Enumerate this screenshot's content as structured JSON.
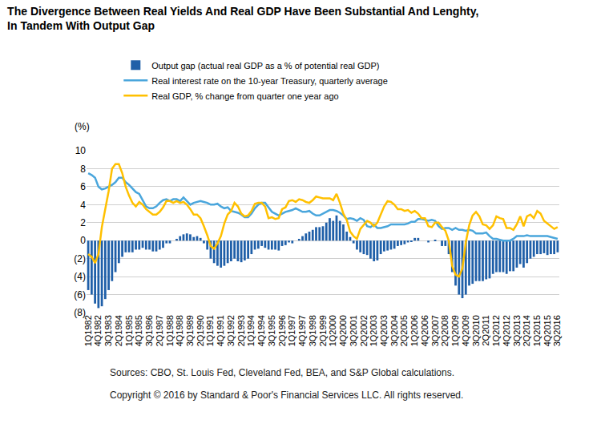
{
  "chart_data": {
    "type": "bar",
    "title": "The Divergence Between Real Yields And Real GDP Have Been Substantial And Lenghty,\nIn Tandem With Output Gap",
    "ylabel": "(%)",
    "annotations": [
      "Sources: CBO, St. Louis Fed, Cleveland Fed, BEA, and S&P Global calculations.",
      "Copyright © 2016 by Standard & Poor's Financial Services LLC. All rights reserved."
    ],
    "categories": [
      "1Q1982",
      null,
      null,
      "4Q1982",
      null,
      null,
      "3Q1983",
      null,
      null,
      "2Q1984",
      null,
      null,
      "1Q1985",
      null,
      null,
      "4Q1985",
      null,
      null,
      "3Q1986",
      null,
      null,
      "2Q1987",
      null,
      null,
      "1Q1988",
      null,
      null,
      "4Q1988",
      null,
      null,
      "3Q1989",
      null,
      null,
      "2Q1990",
      null,
      null,
      "1Q1991",
      null,
      null,
      "4Q1991",
      null,
      null,
      "3Q1992",
      null,
      null,
      "2Q1993",
      null,
      null,
      "1Q1994",
      null,
      null,
      "4Q1994",
      null,
      null,
      "3Q1995",
      null,
      null,
      "2Q1996",
      null,
      null,
      "1Q1997",
      null,
      null,
      "4Q1997",
      null,
      null,
      "3Q1998",
      null,
      null,
      "2Q1999",
      null,
      null,
      "1Q2000",
      null,
      null,
      "4Q2000",
      null,
      null,
      "3Q2001",
      null,
      null,
      "2Q2002",
      null,
      null,
      "1Q2003",
      null,
      null,
      "4Q2003",
      null,
      null,
      "3Q2004",
      null,
      null,
      "2Q2005",
      null,
      null,
      "1Q2006",
      null,
      null,
      "4Q2006",
      null,
      null,
      "3Q2007",
      null,
      null,
      "2Q2008",
      null,
      null,
      "1Q2009",
      null,
      null,
      "4Q2009",
      null,
      null,
      "3Q2010",
      null,
      null,
      "2Q2011",
      null,
      null,
      "1Q2012",
      null,
      null,
      "4Q2012",
      null,
      null,
      "3Q2013",
      null,
      null,
      "2Q2014",
      null,
      null,
      "1Q2015",
      null,
      null,
      "4Q2015",
      null,
      null,
      "3Q2016"
    ],
    "series": [
      {
        "name": "Output gap (actual real GDP as a % of potential real GDP)",
        "type": "bar",
        "color": "#1f5fa8",
        "values": [
          -5.5,
          -6,
          -7,
          -7.5,
          -7.3,
          -6.5,
          -5.5,
          -4.5,
          -3.5,
          -2.5,
          -1.8,
          -1.3,
          -1.3,
          -1.3,
          -1,
          -1,
          -0.8,
          -1,
          -1,
          -1.2,
          -1.2,
          -1,
          -0.8,
          -0.3,
          -0.3,
          0,
          0.2,
          0.5,
          0.7,
          0.8,
          0.7,
          0.4,
          0.5,
          0.3,
          -0.3,
          -1,
          -2,
          -2.5,
          -2.8,
          -3,
          -2.8,
          -2.5,
          -2.3,
          -2,
          -2.3,
          -2.4,
          -2.2,
          -2,
          -1.5,
          -1,
          -0.9,
          -0.6,
          -0.8,
          -1,
          -1,
          -1,
          -1.1,
          -0.6,
          -0.5,
          -0.2,
          -0.3,
          0,
          0.2,
          0.5,
          0.8,
          1,
          1.2,
          1.5,
          1.5,
          1.6,
          2,
          2.5,
          2.2,
          2.8,
          2.2,
          1.8,
          1,
          0.4,
          -0.3,
          -1,
          -1.3,
          -1.5,
          -1.6,
          -2,
          -2.3,
          -2.2,
          -1.5,
          -1.2,
          -1.1,
          -1,
          -0.9,
          -0.6,
          -0.5,
          -0.4,
          -0.2,
          -0.1,
          0.3,
          0.3,
          0,
          0,
          -0.2,
          0,
          0.1,
          0,
          -0.6,
          -0.6,
          -1.5,
          -3.5,
          -5,
          -6,
          -6.4,
          -6,
          -5,
          -4.8,
          -4.5,
          -4.5,
          -4.5,
          -4.3,
          -4.2,
          -3.7,
          -3.5,
          -3.5,
          -3.5,
          -3.7,
          -3.4,
          -3.4,
          -3,
          -2.6,
          -3,
          -2.5,
          -2,
          -1.8,
          -1.5,
          -1.5,
          -1.4,
          -1.6,
          -1.5,
          -1.5,
          -1.3
        ]
      },
      {
        "name": "Real interest rate on the 10-year Treasury, quarterly average",
        "type": "line",
        "color": "#4aa6dc",
        "values": [
          7.5,
          7.3,
          7,
          6,
          5.7,
          5.8,
          6,
          6.2,
          6.5,
          7,
          7,
          6.5,
          6.2,
          5.8,
          5.4,
          5.2,
          4.5,
          3.8,
          3.6,
          3.6,
          3.8,
          4.2,
          4.5,
          4.6,
          4.4,
          4.6,
          4.6,
          4.4,
          4.8,
          4.4,
          4,
          4.2,
          4.3,
          4.4,
          4.3,
          4.2,
          4,
          4,
          4.1,
          3.8,
          3.6,
          3.7,
          3.3,
          3.2,
          3.1,
          2.9,
          2.6,
          2.6,
          3,
          3.6,
          4,
          4.2,
          4.2,
          3.7,
          3.2,
          3,
          2.8,
          3,
          3.2,
          3.3,
          3.4,
          3.6,
          3.4,
          3.2,
          3.2,
          3.3,
          3,
          2.8,
          2.8,
          3,
          3.2,
          3.4,
          3.4,
          3.3,
          3.1,
          2.8,
          2.4,
          2.5,
          2.4,
          2.2,
          2.5,
          2.3,
          1.6,
          1.5,
          1.8,
          1.4,
          1.4,
          1.5,
          1.6,
          1.8,
          1.8,
          1.8,
          1.8,
          1.8,
          1.9,
          2.1,
          2.1,
          2.4,
          2.4,
          2.3,
          2.2,
          2.3,
          2.2,
          1.6,
          1.3,
          1.4,
          1.4,
          1.2,
          1.4,
          1.2,
          1.2,
          1.1,
          1.2,
          1.1,
          0.8,
          0.8,
          0.8,
          0.9,
          0.5,
          0.2,
          0.2,
          0.1,
          0,
          0,
          0,
          0.2,
          0.5,
          0.5,
          0.5,
          0.6,
          0.5,
          0.5,
          0.5,
          0.5,
          0.5,
          0.5,
          0.4,
          0.3,
          0.2
        ]
      },
      {
        "name": "Real GDP, % change from quarter one year ago",
        "type": "line",
        "color": "#ffc000",
        "values": [
          -1.5,
          -1.8,
          -2.5,
          -1.5,
          1.5,
          3.5,
          5.5,
          8,
          8.5,
          8.5,
          7.5,
          6,
          5,
          4.2,
          3.8,
          4.3,
          4,
          3.5,
          3.2,
          2.9,
          2.9,
          3.2,
          3.7,
          4.4,
          4.4,
          4.2,
          4.4,
          4.2,
          4.3,
          4,
          3.5,
          2.9,
          2.9,
          2.5,
          1.6,
          0.6,
          -0.6,
          -0.9,
          -0.3,
          0.5,
          1.9,
          2.9,
          3.3,
          4.2,
          3.8,
          3,
          2.7,
          2.8,
          3.3,
          4.1,
          4.2,
          4.2,
          3.8,
          2.5,
          2.6,
          2.4,
          2.5,
          3.5,
          3.7,
          4.4,
          4.5,
          4.3,
          4.6,
          4.5,
          4.3,
          4.2,
          4.5,
          4.9,
          4.8,
          4.7,
          4.7,
          4.7,
          4.5,
          5.2,
          4.2,
          3,
          2.3,
          1,
          0.5,
          0.2,
          1.3,
          1.8,
          2.2,
          2,
          1.6,
          2,
          2.9,
          3.8,
          4.4,
          4.3,
          4,
          3.5,
          3.5,
          3.3,
          3.4,
          3.1,
          3.3,
          3,
          2.5,
          2.5,
          1.6,
          1.5,
          2,
          2,
          1.5,
          1.1,
          0,
          -2.8,
          -3.8,
          -4,
          -3.1,
          -0.2,
          1.7,
          2.8,
          3.2,
          2.7,
          1.8,
          1.7,
          1.3,
          1.7,
          2.7,
          2.5,
          2.4,
          1.4,
          1.4,
          1.2,
          1.8,
          2.7,
          1.6,
          2.7,
          2.9,
          2.5,
          3.3,
          3,
          2.2,
          1.9,
          1.6,
          1.3,
          1.5
        ]
      }
    ],
    "ylim": [
      -8,
      10
    ],
    "yticks": [
      {
        "value": -8,
        "label": "(8)"
      },
      {
        "value": -6,
        "label": "(6)"
      },
      {
        "value": -4,
        "label": "(4)"
      },
      {
        "value": -2,
        "label": "(2)"
      },
      0,
      2,
      4,
      6,
      8,
      10
    ],
    "grid": true,
    "legend": "top-left"
  }
}
